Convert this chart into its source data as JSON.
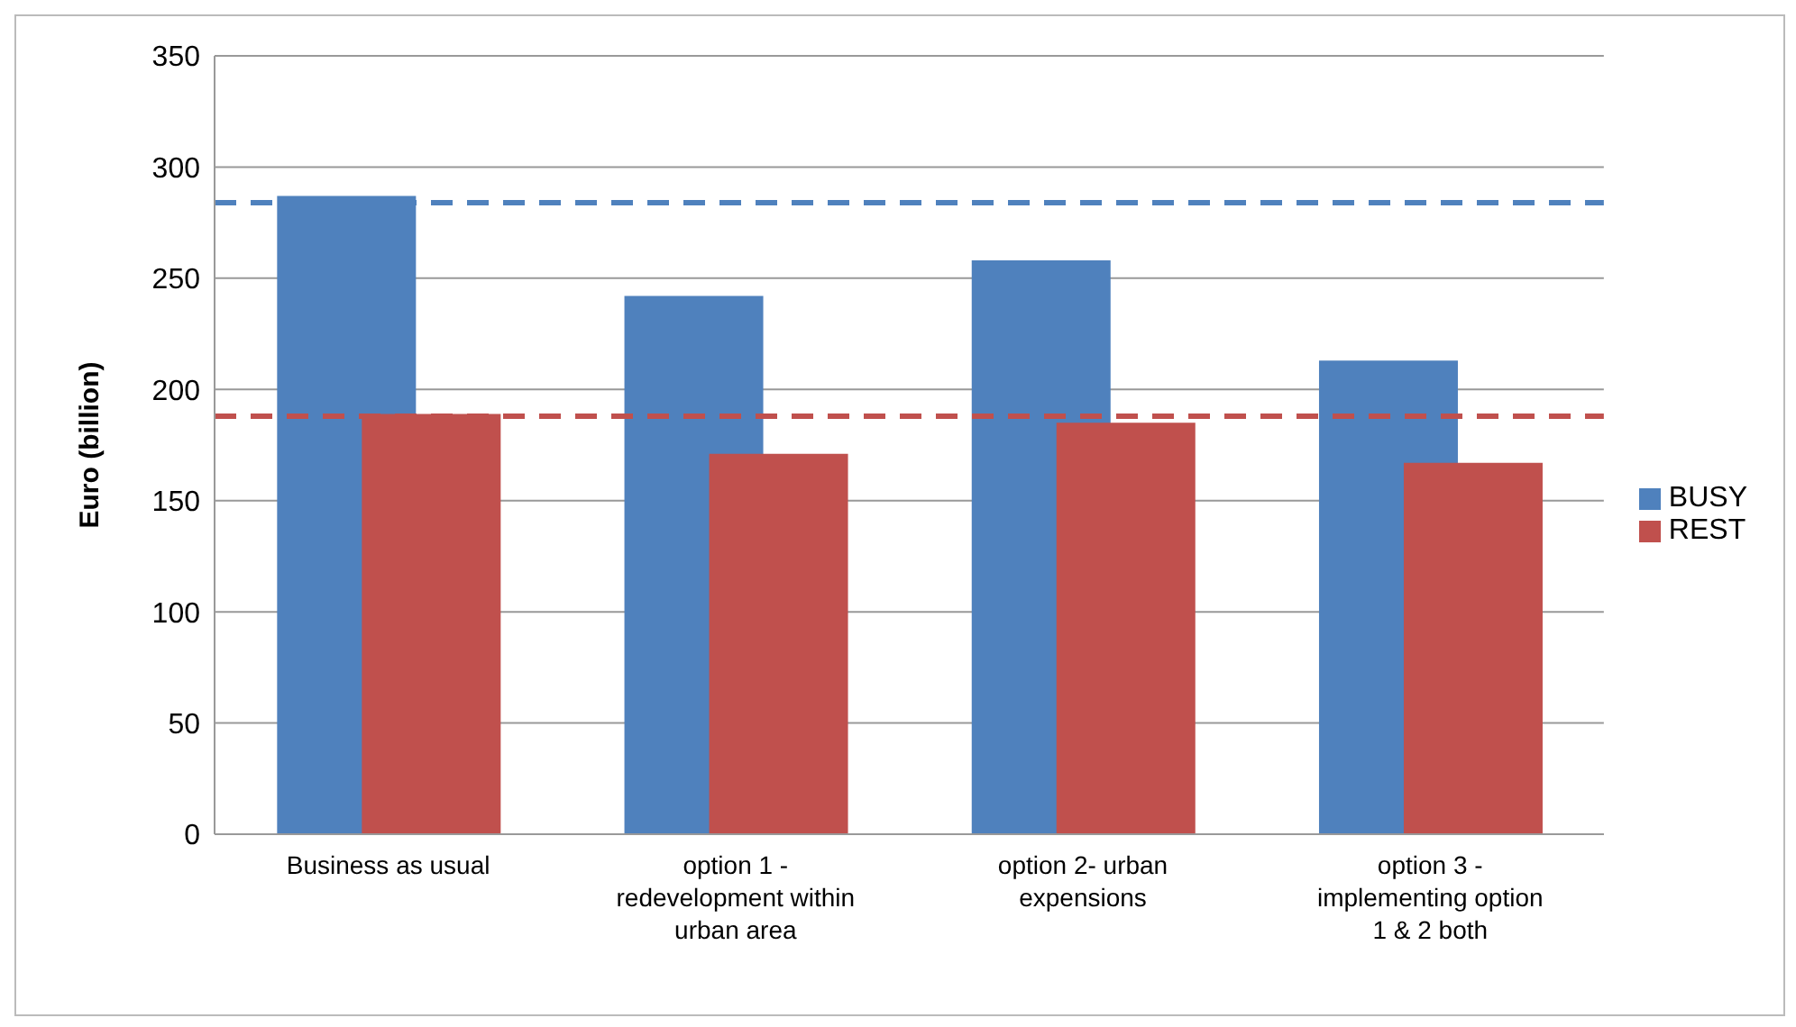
{
  "chart_data": {
    "type": "bar",
    "ylabel": "Euro (billion)",
    "categories": [
      "Business as usual",
      "option 1 - redevelopment within urban area",
      "option 2- urban expensions",
      "option 3 - implementing option 1 & 2 both"
    ],
    "series": [
      {
        "name": "BUSY",
        "color": "#4f81bd",
        "values": [
          287,
          242,
          258,
          213
        ]
      },
      {
        "name": "REST",
        "color": "#c0504d",
        "values": [
          189,
          171,
          185,
          167
        ]
      }
    ],
    "ylim": [
      0,
      350
    ],
    "yticks": [
      0,
      50,
      100,
      150,
      200,
      250,
      300,
      350
    ],
    "grid": "y",
    "legend": "right",
    "ref_lines": [
      {
        "axis": "y",
        "value": 284,
        "color": "#4f81bd",
        "line_style": "dashed"
      },
      {
        "axis": "y",
        "value": 188,
        "color": "#c0504d",
        "line_style": "dashed"
      }
    ]
  }
}
